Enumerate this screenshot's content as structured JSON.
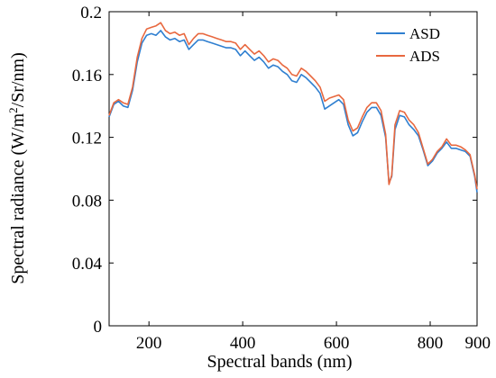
{
  "chart_data": {
    "type": "line",
    "title": "",
    "xlabel": "Spectral bands (nm)",
    "ylabel_parts": [
      "Spectral radiance (W/m",
      "2",
      "/Sr/nm)"
    ],
    "xlim": [
      115,
      900
    ],
    "ylim": [
      0,
      0.2
    ],
    "xticks": [
      200,
      400,
      600,
      800,
      900
    ],
    "xtick_labels": [
      "200",
      "400",
      "600",
      "800",
      "900"
    ],
    "yticks": [
      0,
      0.04,
      0.08,
      0.12,
      0.16,
      0.2
    ],
    "ytick_labels": [
      "0",
      "0.04",
      "0.08",
      "0.12",
      "0.16",
      "0.2"
    ],
    "grid": false,
    "legend_position": "top-right",
    "x": [
      115,
      125,
      135,
      145,
      155,
      165,
      175,
      185,
      195,
      205,
      215,
      225,
      235,
      245,
      255,
      265,
      275,
      285,
      295,
      305,
      315,
      325,
      335,
      345,
      355,
      365,
      375,
      385,
      395,
      405,
      415,
      425,
      435,
      445,
      455,
      465,
      475,
      485,
      495,
      505,
      515,
      525,
      535,
      545,
      555,
      565,
      575,
      585,
      595,
      605,
      615,
      625,
      635,
      645,
      655,
      665,
      675,
      685,
      695,
      705,
      712,
      718,
      725,
      735,
      745,
      755,
      765,
      775,
      785,
      795,
      805,
      815,
      825,
      835,
      845,
      855,
      865,
      875,
      885,
      895,
      900
    ],
    "series": [
      {
        "name": "ASD",
        "color": "#2f7fd0",
        "values": [
          0.133,
          0.141,
          0.143,
          0.14,
          0.139,
          0.15,
          0.168,
          0.18,
          0.185,
          0.186,
          0.185,
          0.188,
          0.184,
          0.182,
          0.183,
          0.181,
          0.182,
          0.176,
          0.179,
          0.182,
          0.182,
          0.181,
          0.18,
          0.179,
          0.178,
          0.177,
          0.177,
          0.176,
          0.172,
          0.175,
          0.172,
          0.169,
          0.171,
          0.168,
          0.164,
          0.166,
          0.165,
          0.162,
          0.16,
          0.156,
          0.155,
          0.16,
          0.158,
          0.155,
          0.152,
          0.148,
          0.138,
          0.14,
          0.142,
          0.144,
          0.141,
          0.128,
          0.121,
          0.123,
          0.13,
          0.136,
          0.139,
          0.139,
          0.134,
          0.12,
          0.091,
          0.095,
          0.125,
          0.134,
          0.133,
          0.128,
          0.125,
          0.121,
          0.112,
          0.102,
          0.105,
          0.11,
          0.113,
          0.117,
          0.113,
          0.113,
          0.112,
          0.111,
          0.108,
          0.095,
          0.085
        ]
      },
      {
        "name": "ADS",
        "color": "#e8683f",
        "values": [
          0.134,
          0.142,
          0.144,
          0.142,
          0.141,
          0.152,
          0.171,
          0.183,
          0.189,
          0.19,
          0.191,
          0.193,
          0.188,
          0.186,
          0.187,
          0.185,
          0.186,
          0.179,
          0.183,
          0.186,
          0.186,
          0.185,
          0.184,
          0.183,
          0.182,
          0.181,
          0.181,
          0.18,
          0.176,
          0.179,
          0.176,
          0.173,
          0.175,
          0.172,
          0.168,
          0.17,
          0.169,
          0.166,
          0.164,
          0.16,
          0.159,
          0.164,
          0.162,
          0.159,
          0.156,
          0.152,
          0.143,
          0.145,
          0.146,
          0.147,
          0.144,
          0.131,
          0.124,
          0.126,
          0.133,
          0.139,
          0.142,
          0.142,
          0.137,
          0.122,
          0.09,
          0.096,
          0.128,
          0.137,
          0.136,
          0.131,
          0.128,
          0.123,
          0.113,
          0.103,
          0.106,
          0.111,
          0.114,
          0.119,
          0.115,
          0.115,
          0.114,
          0.112,
          0.109,
          0.096,
          0.087
        ]
      }
    ]
  }
}
